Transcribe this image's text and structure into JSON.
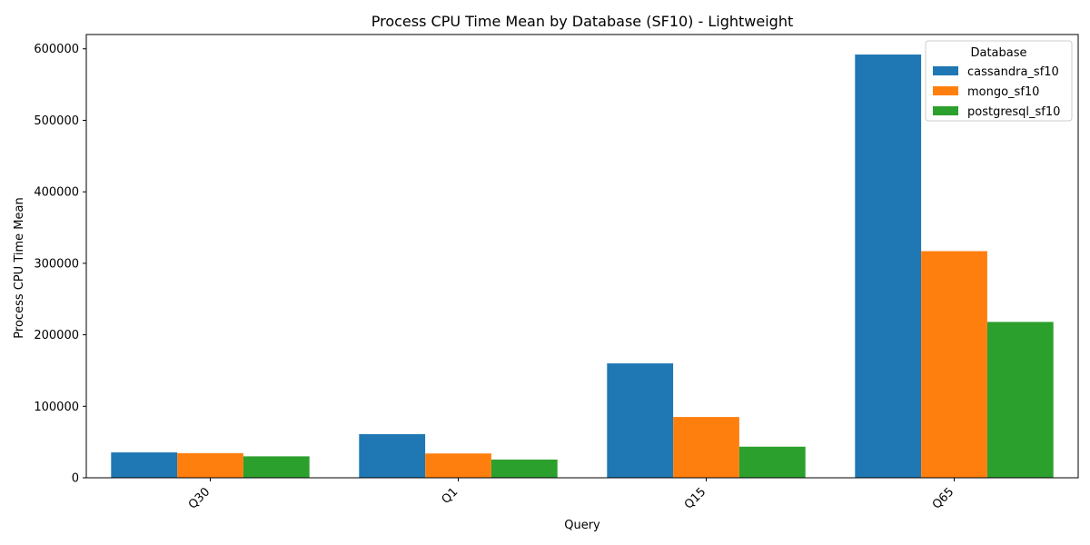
{
  "chart_data": {
    "type": "bar",
    "title": "Process CPU Time Mean by Database (SF10) - Lightweight",
    "xlabel": "Query",
    "ylabel": "Process CPU Time Mean",
    "categories": [
      "Q30",
      "Q1",
      "Q15",
      "Q65"
    ],
    "series": [
      {
        "name": "cassandra_sf10",
        "color": "#1f77b4",
        "values": [
          35500,
          61000,
          160000,
          592000
        ]
      },
      {
        "name": "mongo_sf10",
        "color": "#ff7f0e",
        "values": [
          34500,
          34000,
          85000,
          317000
        ]
      },
      {
        "name": "postgresql_sf10",
        "color": "#2ca02c",
        "values": [
          30000,
          25500,
          43500,
          218000
        ]
      }
    ],
    "ylim": [
      0,
      620000
    ],
    "yticks": [
      0,
      100000,
      200000,
      300000,
      400000,
      500000,
      600000
    ],
    "ytick_labels": [
      "0",
      "100000",
      "200000",
      "300000",
      "400000",
      "500000",
      "600000"
    ],
    "legend": {
      "title": "Database",
      "placement": "top-right"
    },
    "grid": false
  }
}
